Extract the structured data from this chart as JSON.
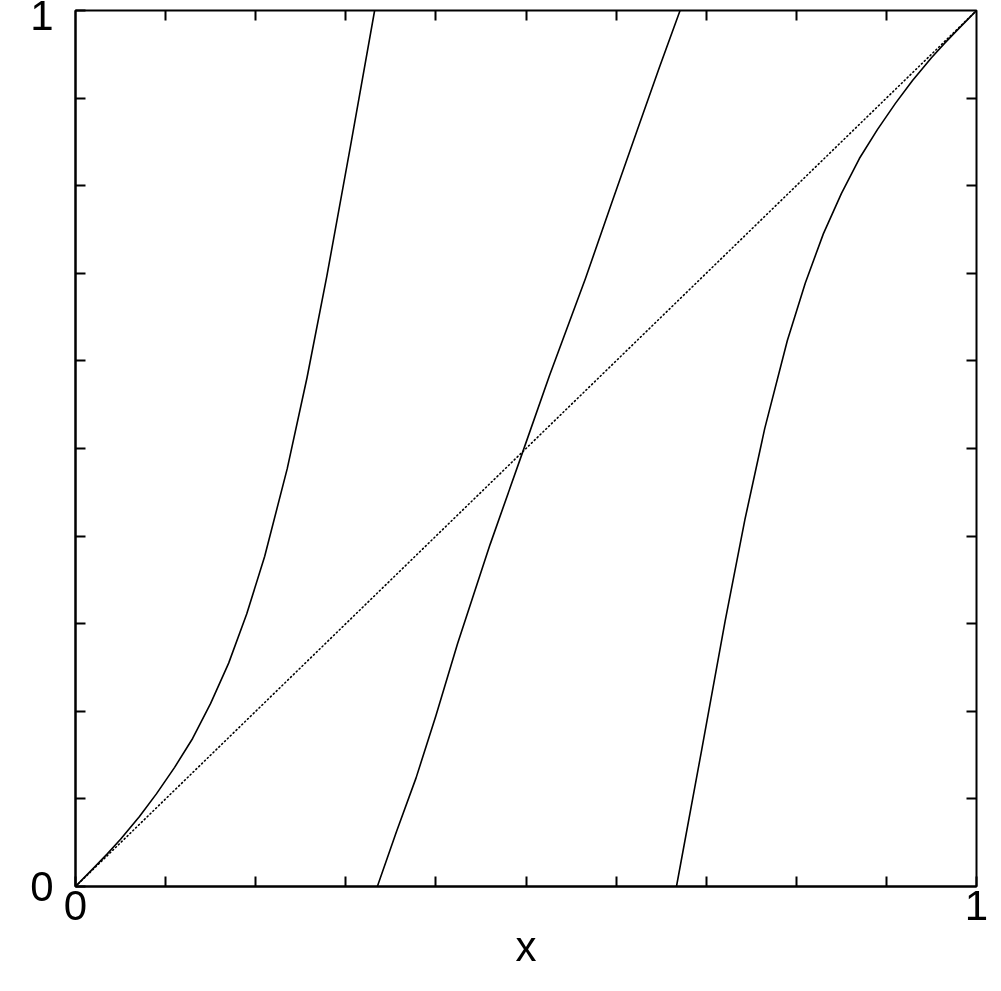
{
  "chart_data": {
    "type": "line",
    "xlabel": "x",
    "xlim": [
      0,
      1
    ],
    "ylim": [
      0,
      1
    ],
    "xticks": [
      0,
      {
        "value": 0.1,
        "label": null
      },
      {
        "value": 0.2,
        "label": null
      },
      {
        "value": 0.3,
        "label": null
      },
      {
        "value": 0.4,
        "label": null
      },
      {
        "value": 0.5,
        "label": null
      },
      {
        "value": 0.6,
        "label": null
      },
      {
        "value": 0.7,
        "label": null
      },
      {
        "value": 0.8,
        "label": null
      },
      {
        "value": 0.9,
        "label": null
      },
      1
    ],
    "yticks": [
      0,
      {
        "value": 0.1,
        "label": null
      },
      {
        "value": 0.2,
        "label": null
      },
      {
        "value": 0.3,
        "label": null
      },
      {
        "value": 0.4,
        "label": null
      },
      {
        "value": 0.5,
        "label": null
      },
      {
        "value": 0.6,
        "label": null
      },
      {
        "value": 0.7,
        "label": null
      },
      {
        "value": 0.8,
        "label": null
      },
      {
        "value": 0.9,
        "label": null
      },
      1
    ],
    "series": [
      {
        "color": "#000000",
        "line_style": "solid",
        "x": [
          0,
          0.02,
          0.035,
          0.05,
          0.071,
          0.09,
          0.11,
          0.13,
          0.15,
          0.17,
          0.19,
          0.21,
          0.235,
          0.257,
          0.279,
          0.305,
          0.332
        ],
        "values": [
          0,
          0.021,
          0.037,
          0.054,
          0.08,
          0.106,
          0.136,
          0.169,
          0.209,
          0.255,
          0.311,
          0.377,
          0.477,
          0.581,
          0.697,
          0.844,
          1
        ]
      },
      {
        "color": "#000000",
        "line_style": "solid",
        "x": [
          0.335,
          0.356,
          0.378,
          0.4,
          0.424,
          0.46,
          0.496,
          0.526,
          0.566,
          0.595,
          0.624,
          0.648,
          0.671
        ],
        "values": [
          0,
          0.062,
          0.124,
          0.195,
          0.277,
          0.39,
          0.495,
          0.583,
          0.694,
          0.78,
          0.865,
          0.935,
          1
        ]
      },
      {
        "color": "#000000",
        "line_style": "solid",
        "x": [
          0.667,
          0.695,
          0.721,
          0.743,
          0.765,
          0.79,
          0.81,
          0.83,
          0.85,
          0.87,
          0.89,
          0.91,
          0.929,
          0.95,
          0.965,
          0.98,
          1
        ],
        "values": [
          0,
          0.156,
          0.303,
          0.419,
          0.523,
          0.623,
          0.689,
          0.745,
          0.791,
          0.831,
          0.864,
          0.894,
          0.92,
          0.946,
          0.963,
          0.979,
          1
        ]
      },
      {
        "color": "#000000",
        "line_style": "dotted",
        "x": [
          0,
          1
        ],
        "values": [
          0,
          1
        ]
      }
    ]
  }
}
